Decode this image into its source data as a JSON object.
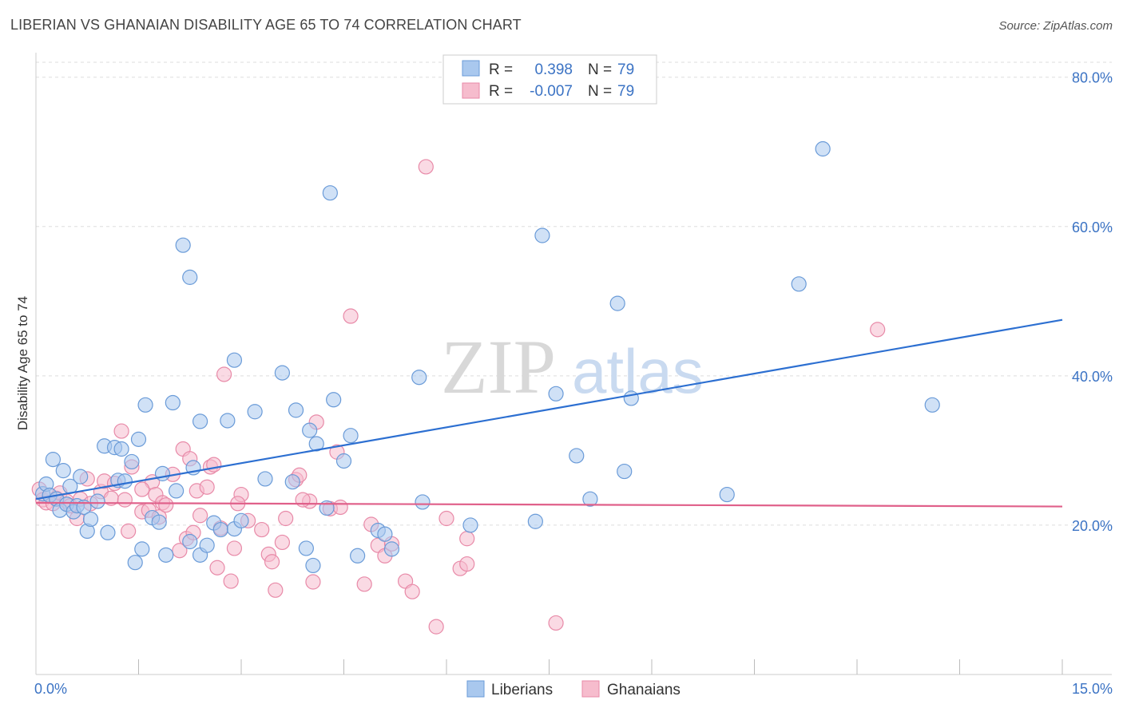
{
  "title": "LIBERIAN VS GHANAIAN DISABILITY AGE 65 TO 74 CORRELATION CHART",
  "source": "Source: ZipAtlas.com",
  "watermark": {
    "zip": "ZIP",
    "atlas": "atlas"
  },
  "colors": {
    "blue_fill": "#a9c8ee",
    "blue_stroke": "#6a9bd8",
    "blue_line": "#2c6fd1",
    "pink_fill": "#f6bccd",
    "pink_stroke": "#e88aa8",
    "pink_line": "#e0608a",
    "tick_text": "#3b73c4",
    "grid": "#dddddd"
  },
  "legend": {
    "rows": [
      {
        "r_label": "R =",
        "r_value": "0.398",
        "n_label": "N =",
        "n_value": "79"
      },
      {
        "r_label": "R =",
        "r_value": "-0.007",
        "n_label": "N =",
        "n_value": "79"
      }
    ]
  },
  "chart_data": {
    "type": "scatter",
    "title": "LIBERIAN VS GHANAIAN DISABILITY AGE 65 TO 74 CORRELATION CHART",
    "xlabel": "",
    "ylabel": "Disability Age 65 to 74",
    "xlim": [
      0,
      15
    ],
    "ylim": [
      0,
      82
    ],
    "x_tick_labels": [
      "0.0%",
      "15.0%"
    ],
    "y_ticks": [
      20,
      40,
      60,
      80
    ],
    "y_tick_labels": [
      "20.0%",
      "40.0%",
      "60.0%",
      "80.0%"
    ],
    "series": [
      {
        "name": "Liberians",
        "r": 0.398,
        "n": 79,
        "trend": {
          "x": [
            0,
            15
          ],
          "y": [
            23.5,
            47.5
          ]
        },
        "points": [
          [
            0.1,
            24.2
          ],
          [
            0.15,
            25.5
          ],
          [
            0.2,
            24.0
          ],
          [
            0.25,
            28.8
          ],
          [
            0.3,
            23.5
          ],
          [
            0.35,
            22.0
          ],
          [
            0.4,
            27.3
          ],
          [
            0.45,
            22.8
          ],
          [
            0.5,
            25.2
          ],
          [
            0.55,
            21.8
          ],
          [
            0.6,
            22.6
          ],
          [
            0.65,
            26.5
          ],
          [
            0.7,
            22.4
          ],
          [
            0.75,
            19.2
          ],
          [
            0.8,
            20.8
          ],
          [
            0.9,
            23.2
          ],
          [
            1.0,
            30.6
          ],
          [
            1.05,
            19.0
          ],
          [
            1.15,
            30.4
          ],
          [
            1.2,
            26.0
          ],
          [
            1.25,
            30.2
          ],
          [
            1.3,
            25.9
          ],
          [
            1.4,
            28.5
          ],
          [
            1.45,
            15.0
          ],
          [
            1.5,
            31.5
          ],
          [
            1.55,
            16.8
          ],
          [
            1.6,
            36.1
          ],
          [
            1.7,
            21.0
          ],
          [
            1.8,
            20.4
          ],
          [
            1.85,
            26.9
          ],
          [
            1.9,
            16.0
          ],
          [
            2.0,
            36.4
          ],
          [
            2.05,
            24.6
          ],
          [
            2.15,
            57.5
          ],
          [
            2.25,
            17.8
          ],
          [
            2.25,
            53.2
          ],
          [
            2.3,
            27.7
          ],
          [
            2.4,
            16.0
          ],
          [
            2.4,
            33.9
          ],
          [
            2.5,
            17.3
          ],
          [
            2.6,
            20.3
          ],
          [
            2.7,
            19.4
          ],
          [
            2.8,
            34.0
          ],
          [
            2.9,
            19.5
          ],
          [
            2.9,
            42.1
          ],
          [
            3.0,
            20.6
          ],
          [
            3.2,
            35.2
          ],
          [
            3.35,
            26.2
          ],
          [
            3.6,
            40.4
          ],
          [
            3.75,
            25.8
          ],
          [
            3.8,
            35.4
          ],
          [
            3.95,
            16.9
          ],
          [
            4.0,
            32.7
          ],
          [
            4.05,
            14.6
          ],
          [
            4.1,
            30.9
          ],
          [
            4.25,
            22.3
          ],
          [
            4.3,
            64.5
          ],
          [
            4.35,
            36.8
          ],
          [
            4.5,
            28.6
          ],
          [
            4.6,
            32.0
          ],
          [
            4.7,
            15.9
          ],
          [
            5.0,
            19.3
          ],
          [
            5.1,
            18.8
          ],
          [
            5.2,
            16.8
          ],
          [
            5.6,
            39.8
          ],
          [
            5.65,
            23.1
          ],
          [
            6.35,
            20.0
          ],
          [
            7.3,
            20.5
          ],
          [
            7.4,
            58.8
          ],
          [
            7.6,
            37.6
          ],
          [
            7.9,
            29.3
          ],
          [
            8.1,
            23.5
          ],
          [
            8.5,
            49.7
          ],
          [
            8.7,
            37.0
          ],
          [
            11.5,
            70.4
          ],
          [
            11.15,
            52.3
          ],
          [
            13.1,
            36.1
          ],
          [
            8.6,
            27.2
          ],
          [
            10.1,
            24.1
          ]
        ]
      },
      {
        "name": "Ghanaians",
        "r": -0.007,
        "n": 79,
        "trend": {
          "x": [
            0,
            15
          ],
          "y": [
            23.0,
            22.5
          ]
        },
        "points": [
          [
            0.05,
            24.8
          ],
          [
            0.1,
            23.4
          ],
          [
            0.15,
            23.0
          ],
          [
            0.2,
            24.0
          ],
          [
            0.25,
            22.9
          ],
          [
            0.3,
            23.6
          ],
          [
            0.35,
            24.3
          ],
          [
            0.45,
            23.2
          ],
          [
            0.5,
            22.6
          ],
          [
            0.6,
            20.9
          ],
          [
            0.65,
            23.5
          ],
          [
            0.75,
            26.2
          ],
          [
            0.8,
            22.9
          ],
          [
            0.95,
            24.5
          ],
          [
            1.0,
            25.9
          ],
          [
            1.1,
            23.6
          ],
          [
            1.15,
            25.6
          ],
          [
            1.25,
            32.6
          ],
          [
            1.3,
            23.4
          ],
          [
            1.35,
            19.2
          ],
          [
            1.4,
            27.8
          ],
          [
            1.55,
            21.8
          ],
          [
            1.65,
            22.0
          ],
          [
            1.7,
            25.8
          ],
          [
            1.75,
            24.1
          ],
          [
            1.8,
            21.1
          ],
          [
            1.85,
            23.0
          ],
          [
            1.9,
            22.7
          ],
          [
            2.0,
            26.8
          ],
          [
            2.1,
            16.6
          ],
          [
            2.15,
            30.2
          ],
          [
            2.2,
            18.2
          ],
          [
            2.25,
            28.9
          ],
          [
            2.3,
            19.0
          ],
          [
            2.35,
            24.6
          ],
          [
            2.4,
            21.3
          ],
          [
            2.5,
            25.1
          ],
          [
            2.55,
            27.8
          ],
          [
            2.6,
            28.1
          ],
          [
            2.65,
            14.3
          ],
          [
            2.7,
            19.6
          ],
          [
            2.75,
            40.2
          ],
          [
            2.85,
            12.5
          ],
          [
            2.9,
            16.9
          ],
          [
            3.0,
            24.1
          ],
          [
            3.1,
            20.6
          ],
          [
            3.3,
            19.4
          ],
          [
            3.4,
            16.1
          ],
          [
            3.45,
            15.1
          ],
          [
            3.5,
            11.3
          ],
          [
            3.6,
            17.7
          ],
          [
            3.65,
            20.9
          ],
          [
            3.8,
            26.1
          ],
          [
            3.85,
            26.7
          ],
          [
            4.0,
            23.2
          ],
          [
            4.05,
            12.4
          ],
          [
            4.1,
            33.8
          ],
          [
            4.3,
            22.2
          ],
          [
            4.4,
            29.8
          ],
          [
            4.45,
            22.4
          ],
          [
            4.6,
            48.0
          ],
          [
            4.8,
            12.1
          ],
          [
            4.9,
            20.1
          ],
          [
            5.0,
            17.3
          ],
          [
            5.1,
            15.9
          ],
          [
            5.2,
            17.5
          ],
          [
            5.4,
            12.5
          ],
          [
            5.5,
            11.1
          ],
          [
            5.7,
            68.0
          ],
          [
            5.85,
            6.4
          ],
          [
            6.0,
            20.9
          ],
          [
            6.2,
            14.2
          ],
          [
            6.3,
            14.8
          ],
          [
            6.3,
            18.2
          ],
          [
            7.6,
            6.9
          ],
          [
            12.3,
            46.2
          ],
          [
            3.9,
            23.4
          ],
          [
            1.55,
            24.8
          ],
          [
            2.95,
            22.9
          ]
        ]
      }
    ],
    "legend_position": "top-center",
    "bottom_legend": [
      "Liberians",
      "Ghanaians"
    ]
  }
}
